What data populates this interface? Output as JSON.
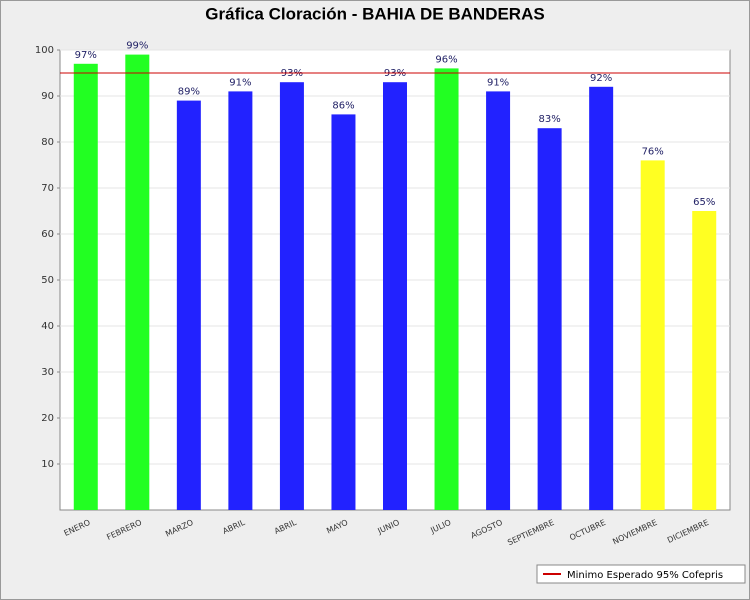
{
  "chart_data": {
    "type": "bar",
    "title": "Gráfica Cloración - BAHIA DE BANDERAS",
    "categories": [
      "ENERO",
      "FEBRERO",
      "MARZO",
      "ABRIL",
      "ABRIL",
      "MAYO",
      "JUNIO",
      "JULIO",
      "AGOSTO",
      "SEPTIEMBRE",
      "OCTUBRE",
      "NOVIEMBRE",
      "DICIEMBRE"
    ],
    "values": [
      97,
      99,
      89,
      91,
      93,
      86,
      93,
      96,
      91,
      83,
      92,
      76,
      65
    ],
    "value_labels": [
      "97%",
      "99%",
      "89%",
      "91%",
      "93%",
      "86%",
      "93%",
      "96%",
      "91%",
      "83%",
      "92%",
      "76%",
      "65%"
    ],
    "colors": [
      "#22ff22",
      "#22ff22",
      "#2222ff",
      "#2222ff",
      "#2222ff",
      "#2222ff",
      "#2222ff",
      "#22ff22",
      "#2222ff",
      "#2222ff",
      "#2222ff",
      "#ffff22",
      "#ffff22"
    ],
    "ylim": [
      0,
      100
    ],
    "yticks": [
      10,
      20,
      30,
      40,
      50,
      60,
      70,
      80,
      90,
      100
    ],
    "grid": true,
    "reference_line": {
      "value": 95,
      "label": "Minimo Esperado 95% Cofepris",
      "color": "#cc0000"
    },
    "legend": "bottom-right"
  }
}
